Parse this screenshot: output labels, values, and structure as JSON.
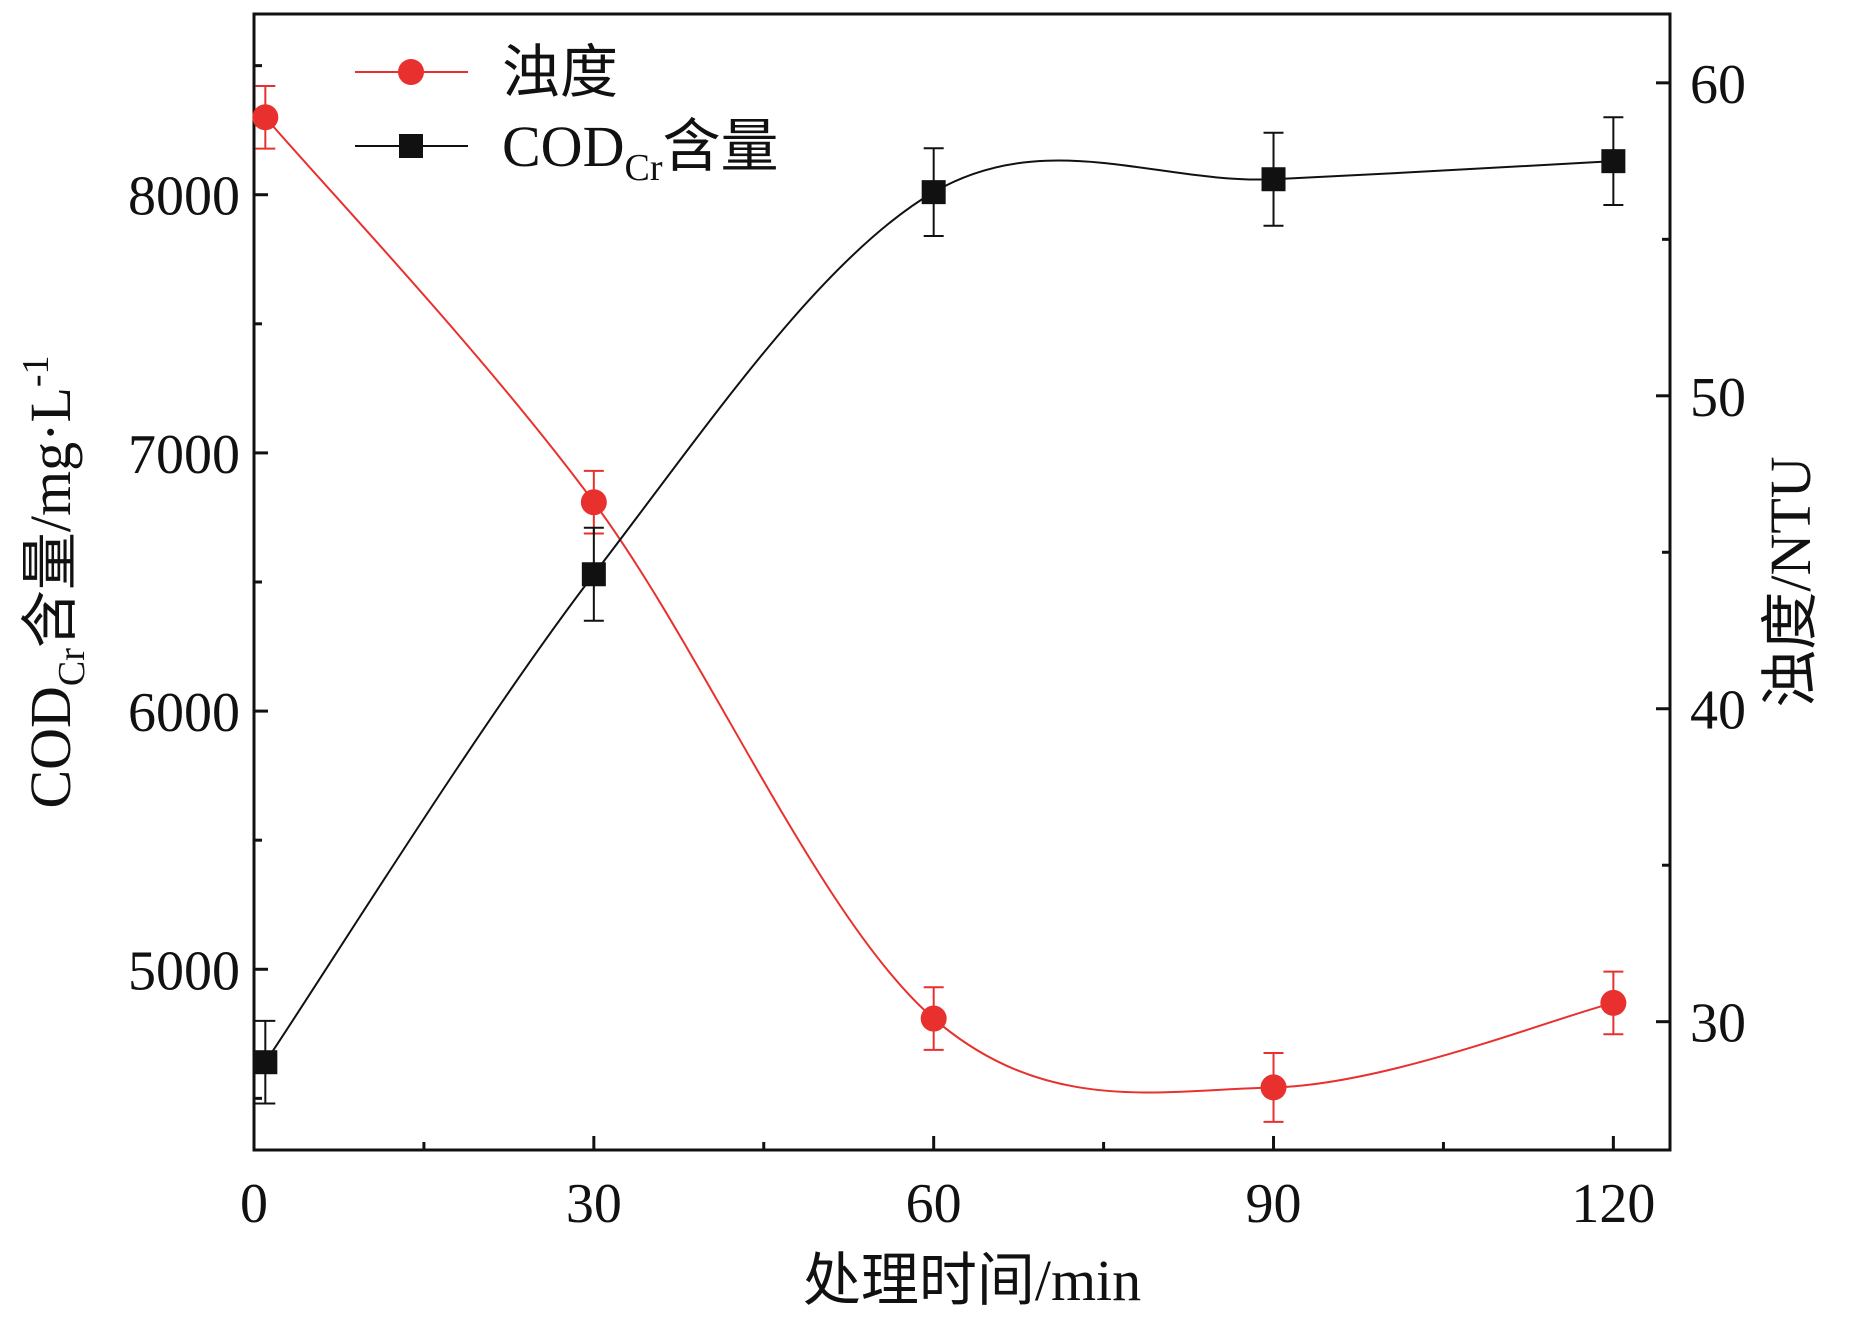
{
  "chart_data": {
    "type": "line",
    "x": [
      1,
      30,
      60,
      90,
      120
    ],
    "xlabel": "处理时间/min",
    "xlim": [
      0,
      125
    ],
    "xticks": [
      0,
      30,
      60,
      90,
      120
    ],
    "xtick_labels": [
      "0",
      "30",
      "60",
      "90",
      "120"
    ],
    "y_left": {
      "label_parts": [
        "COD",
        "Cr",
        "含量/mg·L",
        "-1"
      ],
      "ylim": [
        4300,
        8700
      ],
      "ticks": [
        5000,
        6000,
        7000,
        8000
      ],
      "tick_labels": [
        "5000",
        "6000",
        "7000",
        "8000"
      ]
    },
    "y_right": {
      "label": "浊度/NTU",
      "ylim": [
        25.9,
        62.2
      ],
      "ticks": [
        30,
        40,
        50,
        60
      ],
      "tick_labels": [
        "30",
        "40",
        "50",
        "60"
      ]
    },
    "legend_position": "top-left",
    "grid": false,
    "series": [
      {
        "name": "浊度",
        "legend_parts": [
          "浊度"
        ],
        "axis": "right",
        "color": "#e8312f",
        "marker": "circle",
        "values": [
          58.9,
          46.6,
          30.1,
          27.9,
          30.6
        ],
        "error": [
          1.0,
          1.0,
          1.0,
          1.1,
          1.0
        ]
      },
      {
        "name": "CODCr含量",
        "legend_parts": [
          "COD",
          "Cr",
          "含量"
        ],
        "axis": "left",
        "color": "#111111",
        "marker": "square",
        "values": [
          4640,
          6530,
          8010,
          8060,
          8130
        ],
        "error": [
          160,
          180,
          170,
          180,
          170
        ]
      }
    ]
  }
}
